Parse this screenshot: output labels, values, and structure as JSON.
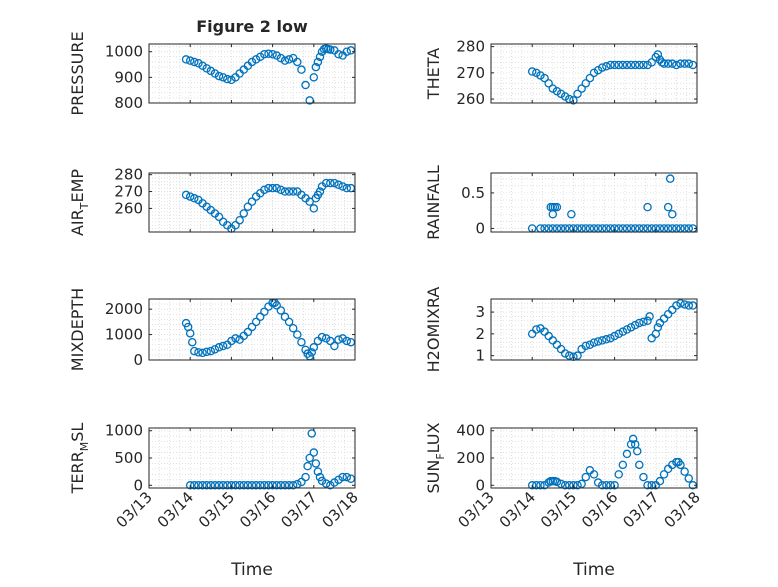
{
  "figure": {
    "title": "Figure 2 low"
  },
  "colors": {
    "marker": "#0072BD",
    "grid": "#d9d9d9",
    "axis": "#262626",
    "text": "#262626"
  },
  "chart_data": [
    {
      "id": "pressure",
      "type": "scatter",
      "title": "Figure 2 low",
      "ylabel": "PRESSURE",
      "xlabel": "",
      "ylim": [
        800,
        1030
      ],
      "xlim": [
        0,
        5
      ],
      "yticks": [
        800,
        900,
        1000
      ],
      "xtick_labels": [
        "03/13",
        "03/14",
        "03/15",
        "03/16",
        "03/17",
        "03/18"
      ],
      "grid": true,
      "series": [
        {
          "x": [
            0.9,
            1.0,
            1.1,
            1.2,
            1.3,
            1.4,
            1.5,
            1.6,
            1.7,
            1.8,
            1.9,
            2.0,
            2.1,
            2.2,
            2.3,
            2.4,
            2.5,
            2.6,
            2.7,
            2.8,
            2.9,
            3.0,
            3.1,
            3.2,
            3.3,
            3.4,
            3.5,
            3.6,
            3.7,
            3.8,
            3.9,
            4.0,
            4.05,
            4.1,
            4.15,
            4.2,
            4.25,
            4.3,
            4.35,
            4.4,
            4.5,
            4.6,
            4.7,
            4.8,
            4.9
          ],
          "y": [
            970,
            965,
            960,
            955,
            945,
            935,
            925,
            915,
            905,
            900,
            893,
            890,
            900,
            915,
            930,
            945,
            960,
            970,
            980,
            990,
            992,
            990,
            985,
            975,
            965,
            970,
            975,
            960,
            930,
            870,
            810,
            900,
            940,
            960,
            980,
            1000,
            1010,
            1012,
            1010,
            1008,
            1005,
            990,
            985,
            1000,
            1005
          ]
        }
      ]
    },
    {
      "id": "theta",
      "type": "scatter",
      "ylabel": "THETA",
      "xlabel": "",
      "ylim": [
        258.5,
        281
      ],
      "xlim": [
        0,
        5
      ],
      "yticks": [
        260,
        270,
        280
      ],
      "xtick_labels": [
        "03/13",
        "03/14",
        "03/15",
        "03/16",
        "03/17",
        "03/18"
      ],
      "grid": true,
      "series": [
        {
          "x": [
            1.0,
            1.1,
            1.2,
            1.3,
            1.4,
            1.5,
            1.6,
            1.7,
            1.8,
            1.9,
            2.0,
            2.1,
            2.2,
            2.3,
            2.4,
            2.5,
            2.6,
            2.7,
            2.8,
            2.9,
            3.0,
            3.1,
            3.2,
            3.3,
            3.4,
            3.5,
            3.6,
            3.7,
            3.8,
            3.9,
            4.0,
            4.05,
            4.1,
            4.15,
            4.2,
            4.3,
            4.4,
            4.5,
            4.6,
            4.7,
            4.8,
            4.9
          ],
          "y": [
            270.5,
            270,
            269,
            268,
            266,
            264,
            263,
            262,
            261,
            260,
            259.5,
            262,
            264,
            266,
            268,
            270,
            271,
            272,
            272.5,
            273,
            273,
            273,
            273,
            273,
            273,
            273,
            273,
            273,
            273,
            274,
            276,
            277,
            275,
            274,
            273.5,
            273.5,
            273.5,
            273,
            273.5,
            273.5,
            273.5,
            273
          ]
        }
      ]
    },
    {
      "id": "air-temp",
      "type": "scatter",
      "ylabel": "AIR",
      "ylabel_sub": "T",
      "ylabel_rest": "EMP",
      "xlabel": "",
      "ylim": [
        246,
        281
      ],
      "xlim": [
        0,
        5
      ],
      "yticks": [
        260,
        270,
        280
      ],
      "xtick_labels": [
        "03/13",
        "03/14",
        "03/15",
        "03/16",
        "03/17",
        "03/18"
      ],
      "grid": true,
      "series": [
        {
          "x": [
            0.9,
            1.0,
            1.1,
            1.2,
            1.3,
            1.4,
            1.5,
            1.6,
            1.7,
            1.8,
            1.9,
            2.0,
            2.1,
            2.2,
            2.3,
            2.4,
            2.5,
            2.6,
            2.7,
            2.8,
            2.9,
            3.0,
            3.1,
            3.2,
            3.3,
            3.4,
            3.5,
            3.6,
            3.7,
            3.8,
            3.9,
            4.0,
            4.05,
            4.1,
            4.15,
            4.2,
            4.3,
            4.4,
            4.5,
            4.6,
            4.7,
            4.8,
            4.9
          ],
          "y": [
            268,
            267,
            266,
            265,
            263,
            261,
            259,
            257,
            255,
            252,
            250,
            248,
            250,
            253,
            257,
            261,
            264,
            267,
            269,
            271,
            272,
            272,
            272,
            271,
            270,
            270,
            270,
            270,
            268,
            266,
            264,
            260,
            266,
            268,
            270,
            273,
            275,
            275,
            275,
            274,
            273,
            272,
            272
          ]
        }
      ]
    },
    {
      "id": "rainfall",
      "type": "scatter",
      "ylabel": "RAINFALL",
      "xlabel": "",
      "ylim": [
        -0.05,
        0.78
      ],
      "xlim": [
        0,
        5
      ],
      "yticks": [
        0,
        0.5
      ],
      "xtick_labels": [
        "03/13",
        "03/14",
        "03/15",
        "03/16",
        "03/17",
        "03/18"
      ],
      "grid": true,
      "series": [
        {
          "x": [
            1.0,
            1.2,
            1.3,
            1.4,
            1.5,
            1.6,
            1.7,
            1.8,
            1.9,
            2.0,
            2.1,
            2.2,
            2.3,
            2.4,
            2.5,
            2.6,
            2.7,
            2.8,
            2.9,
            3.0,
            3.1,
            3.2,
            3.3,
            3.4,
            3.5,
            3.6,
            3.7,
            3.8,
            3.9,
            4.0,
            4.1,
            4.2,
            4.3,
            4.4,
            4.5,
            4.6,
            4.7,
            4.8,
            4.9,
            1.45,
            1.5,
            1.55,
            1.6,
            1.5,
            1.95,
            3.8,
            4.3,
            4.35,
            4.4
          ],
          "y": [
            0,
            0,
            0,
            0,
            0,
            0,
            0,
            0,
            0,
            0,
            0,
            0,
            0,
            0,
            0,
            0,
            0,
            0,
            0,
            0,
            0,
            0,
            0,
            0,
            0,
            0,
            0,
            0,
            0,
            0,
            0,
            0,
            0,
            0,
            0,
            0,
            0,
            0,
            0,
            0.3,
            0.3,
            0.3,
            0.3,
            0.2,
            0.2,
            0.3,
            0.3,
            0.7,
            0.2
          ]
        }
      ]
    },
    {
      "id": "mixdepth",
      "type": "scatter",
      "ylabel": "MIXDEPTH",
      "xlabel": "",
      "ylim": [
        0,
        2400
      ],
      "xlim": [
        0,
        5
      ],
      "yticks": [
        0,
        1000,
        2000
      ],
      "xtick_labels": [
        "03/13",
        "03/14",
        "03/15",
        "03/16",
        "03/17",
        "03/18"
      ],
      "grid": true,
      "series": [
        {
          "x": [
            0.9,
            0.95,
            1.0,
            1.05,
            1.1,
            1.2,
            1.3,
            1.4,
            1.5,
            1.6,
            1.7,
            1.8,
            1.9,
            2.0,
            2.1,
            2.2,
            2.3,
            2.4,
            2.5,
            2.6,
            2.7,
            2.8,
            2.9,
            3.0,
            3.05,
            3.1,
            3.2,
            3.3,
            3.4,
            3.5,
            3.6,
            3.7,
            3.8,
            3.85,
            3.9,
            3.95,
            4.0,
            4.1,
            4.2,
            4.3,
            4.4,
            4.5,
            4.6,
            4.7,
            4.8,
            4.9
          ],
          "y": [
            1450,
            1300,
            1050,
            700,
            350,
            300,
            280,
            320,
            350,
            420,
            500,
            550,
            600,
            750,
            850,
            800,
            950,
            1100,
            1300,
            1500,
            1700,
            1900,
            2100,
            2250,
            2250,
            2150,
            1950,
            1700,
            1500,
            1250,
            1000,
            700,
            400,
            250,
            150,
            300,
            500,
            750,
            900,
            850,
            750,
            550,
            800,
            850,
            750,
            700
          ]
        }
      ]
    },
    {
      "id": "h2omixra",
      "type": "scatter",
      "ylabel": "H2OMIXRA",
      "xlabel": "",
      "ylim": [
        0.8,
        3.6
      ],
      "xlim": [
        0,
        5
      ],
      "yticks": [
        1,
        2,
        3
      ],
      "xtick_labels": [
        "03/13",
        "03/14",
        "03/15",
        "03/16",
        "03/17",
        "03/18"
      ],
      "grid": true,
      "series": [
        {
          "x": [
            1.0,
            1.1,
            1.2,
            1.3,
            1.4,
            1.5,
            1.6,
            1.7,
            1.8,
            1.9,
            2.0,
            2.1,
            2.2,
            2.3,
            2.4,
            2.5,
            2.6,
            2.7,
            2.8,
            2.9,
            3.0,
            3.1,
            3.2,
            3.3,
            3.4,
            3.5,
            3.6,
            3.7,
            3.8,
            3.85,
            3.9,
            4.0,
            4.05,
            4.1,
            4.2,
            4.3,
            4.4,
            4.5,
            4.6,
            4.7,
            4.8,
            4.9
          ],
          "y": [
            2.0,
            2.2,
            2.25,
            2.1,
            1.9,
            1.7,
            1.5,
            1.3,
            1.1,
            1.0,
            0.95,
            1.0,
            1.3,
            1.45,
            1.5,
            1.6,
            1.65,
            1.7,
            1.75,
            1.8,
            1.9,
            2.0,
            2.1,
            2.2,
            2.3,
            2.4,
            2.5,
            2.55,
            2.6,
            2.8,
            1.8,
            2.0,
            2.3,
            2.5,
            2.7,
            2.9,
            3.1,
            3.3,
            3.4,
            3.35,
            3.3,
            3.3
          ]
        }
      ]
    },
    {
      "id": "terr-msl",
      "type": "scatter",
      "ylabel": "TERR",
      "ylabel_sub": "M",
      "ylabel_rest": "SL",
      "xlabel": "Time",
      "ylim": [
        -50,
        1050
      ],
      "xlim": [
        0,
        5
      ],
      "yticks": [
        0,
        500,
        1000
      ],
      "xtick_labels": [
        "03/13",
        "03/14",
        "03/15",
        "03/16",
        "03/17",
        "03/18"
      ],
      "grid": true,
      "series": [
        {
          "x": [
            1.0,
            1.1,
            1.2,
            1.3,
            1.4,
            1.5,
            1.6,
            1.7,
            1.8,
            1.9,
            2.0,
            2.1,
            2.2,
            2.3,
            2.4,
            2.5,
            2.6,
            2.7,
            2.8,
            2.9,
            3.0,
            3.1,
            3.2,
            3.3,
            3.4,
            3.5,
            3.6,
            3.7,
            3.8,
            3.85,
            3.9,
            3.95,
            4.0,
            4.05,
            4.1,
            4.15,
            4.2,
            4.3,
            4.4,
            4.5,
            4.6,
            4.7,
            4.8,
            4.9
          ],
          "y": [
            0,
            0,
            0,
            0,
            0,
            0,
            0,
            0,
            0,
            0,
            0,
            0,
            0,
            0,
            0,
            0,
            0,
            0,
            0,
            0,
            0,
            0,
            0,
            0,
            0,
            0,
            20,
            60,
            150,
            350,
            500,
            950,
            600,
            400,
            250,
            150,
            80,
            30,
            0,
            50,
            100,
            150,
            150,
            120
          ]
        }
      ]
    },
    {
      "id": "sun-flux",
      "type": "scatter",
      "ylabel": "SUN",
      "ylabel_sub": "F",
      "ylabel_rest": "LUX",
      "xlabel": "Time",
      "ylim": [
        -20,
        420
      ],
      "xlim": [
        0,
        5
      ],
      "yticks": [
        0,
        200,
        400
      ],
      "xtick_labels": [
        "03/13",
        "03/14",
        "03/15",
        "03/16",
        "03/17",
        "03/18"
      ],
      "grid": true,
      "series": [
        {
          "x": [
            1.0,
            1.1,
            1.2,
            1.3,
            1.4,
            1.45,
            1.5,
            1.55,
            1.6,
            1.7,
            1.8,
            1.9,
            2.0,
            2.1,
            2.2,
            2.3,
            2.4,
            2.5,
            2.6,
            2.7,
            2.8,
            2.9,
            3.0,
            3.1,
            3.2,
            3.3,
            3.4,
            3.45,
            3.5,
            3.55,
            3.6,
            3.7,
            3.8,
            3.9,
            4.0,
            4.1,
            4.2,
            4.3,
            4.4,
            4.5,
            4.55,
            4.6,
            4.7,
            4.8,
            4.9
          ],
          "y": [
            0,
            0,
            0,
            0,
            20,
            30,
            30,
            30,
            25,
            10,
            0,
            0,
            0,
            0,
            10,
            60,
            110,
            80,
            20,
            0,
            0,
            0,
            0,
            80,
            150,
            230,
            300,
            340,
            300,
            250,
            150,
            60,
            0,
            0,
            0,
            30,
            80,
            120,
            150,
            170,
            170,
            150,
            100,
            50,
            0
          ]
        }
      ]
    }
  ]
}
